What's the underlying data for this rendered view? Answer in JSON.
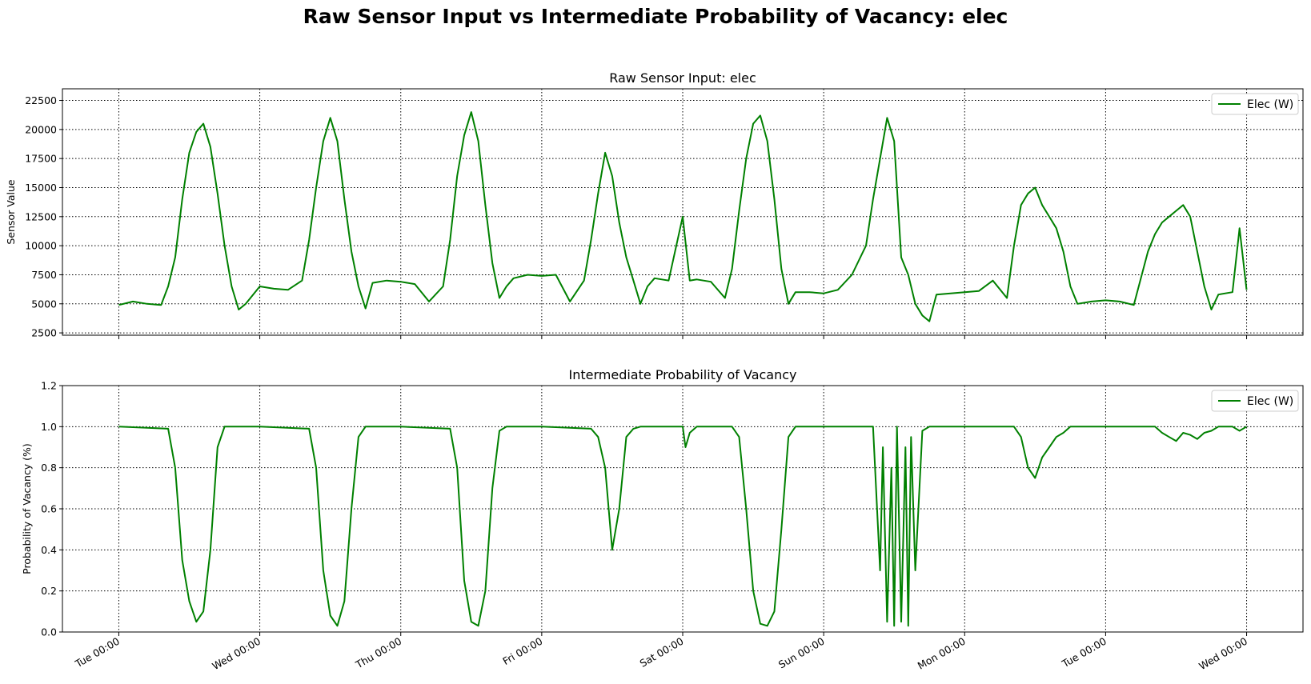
{
  "figure": {
    "title": "Raw Sensor Input vs Intermediate Probability of Vacancy: elec"
  },
  "colors": {
    "series": "#008000",
    "grid": "#000000",
    "axes": "#000000",
    "background": "#ffffff"
  },
  "chart_data": [
    {
      "type": "line",
      "title": "Raw Sensor Input: elec",
      "xlabel": "",
      "ylabel": "Sensor Value",
      "x_unit": "days since Tue 00:00",
      "xlim": [
        -0.4,
        8.4
      ],
      "ylim": [
        2300,
        23500
      ],
      "yticks": [
        2500,
        5000,
        7500,
        10000,
        12500,
        15000,
        17500,
        20000,
        22500
      ],
      "xticks": [
        0,
        1,
        2,
        3,
        4,
        5,
        6,
        7,
        8
      ],
      "xtick_labels": [
        "Tue 00:00",
        "Wed 00:00",
        "Thu 00:00",
        "Fri 00:00",
        "Sat 00:00",
        "Sun 00:00",
        "Mon 00:00",
        "Tue 00:00",
        "Wed 00:00"
      ],
      "grid": true,
      "legend_position": "top-right",
      "series": [
        {
          "name": "Elec (W)",
          "x": [
            0,
            0.1,
            0.2,
            0.3,
            0.35,
            0.4,
            0.45,
            0.5,
            0.55,
            0.6,
            0.65,
            0.7,
            0.75,
            0.8,
            0.85,
            0.9,
            1.0,
            1.1,
            1.2,
            1.3,
            1.35,
            1.4,
            1.45,
            1.5,
            1.55,
            1.6,
            1.65,
            1.7,
            1.75,
            1.8,
            1.9,
            2.0,
            2.1,
            2.2,
            2.3,
            2.35,
            2.4,
            2.45,
            2.5,
            2.55,
            2.6,
            2.65,
            2.7,
            2.75,
            2.8,
            2.9,
            3.0,
            3.1,
            3.2,
            3.3,
            3.35,
            3.4,
            3.45,
            3.5,
            3.55,
            3.6,
            3.65,
            3.7,
            3.75,
            3.8,
            3.9,
            4.0,
            4.05,
            4.1,
            4.2,
            4.3,
            4.35,
            4.4,
            4.45,
            4.5,
            4.55,
            4.6,
            4.65,
            4.7,
            4.75,
            4.8,
            4.9,
            5.0,
            5.1,
            5.2,
            5.3,
            5.35,
            5.4,
            5.45,
            5.5,
            5.55,
            5.6,
            5.65,
            5.7,
            5.75,
            5.8,
            5.9,
            6.0,
            6.1,
            6.2,
            6.3,
            6.35,
            6.4,
            6.45,
            6.5,
            6.55,
            6.6,
            6.65,
            6.7,
            6.75,
            6.8,
            6.9,
            7.0,
            7.1,
            7.2,
            7.3,
            7.35,
            7.4,
            7.45,
            7.5,
            7.55,
            7.6,
            7.65,
            7.7,
            7.75,
            7.8,
            7.9,
            7.95,
            8.0
          ],
          "y": [
            4900,
            5200,
            5000,
            4900,
            6500,
            9000,
            14000,
            18000,
            19800,
            20500,
            18500,
            14500,
            10000,
            6500,
            4500,
            5000,
            6500,
            6300,
            6200,
            7000,
            10500,
            15000,
            19000,
            21000,
            19000,
            14000,
            9500,
            6500,
            4600,
            6800,
            7000,
            6900,
            6700,
            5200,
            6500,
            10500,
            16000,
            19500,
            21500,
            19000,
            13500,
            8500,
            5500,
            6500,
            7200,
            7500,
            7400,
            7500,
            5200,
            7000,
            10500,
            14500,
            18000,
            16000,
            12000,
            9000,
            7000,
            5000,
            6500,
            7200,
            7000,
            12500,
            7000,
            7100,
            6900,
            5500,
            8000,
            13000,
            17500,
            20500,
            21200,
            19000,
            14000,
            8000,
            5000,
            6000,
            6000,
            5900,
            6200,
            7500,
            10000,
            14000,
            17500,
            21000,
            19000,
            9000,
            7500,
            5000,
            4000,
            3500,
            5800,
            5900,
            6000,
            6100,
            7000,
            5500,
            10000,
            13500,
            14500,
            15000,
            13500,
            12500,
            11500,
            9500,
            6500,
            5000,
            5200,
            5300,
            5200,
            4900,
            9500,
            11000,
            12000,
            12500,
            13000,
            13500,
            12500,
            9500,
            6500,
            4500,
            5800,
            6000,
            11500,
            6200
          ]
        }
      ]
    },
    {
      "type": "line",
      "title": "Intermediate Probability of Vacancy",
      "xlabel": "",
      "ylabel": "Probability of Vacancy (%)",
      "x_unit": "days since Tue 00:00",
      "xlim": [
        -0.4,
        8.4
      ],
      "ylim": [
        0.0,
        1.2
      ],
      "yticks": [
        0.0,
        0.2,
        0.4,
        0.6,
        0.8,
        1.0,
        1.2
      ],
      "xticks": [
        0,
        1,
        2,
        3,
        4,
        5,
        6,
        7,
        8
      ],
      "xtick_labels": [
        "Tue 00:00",
        "Wed 00:00",
        "Thu 00:00",
        "Fri 00:00",
        "Sat 00:00",
        "Sun 00:00",
        "Mon 00:00",
        "Tue 00:00",
        "Wed 00:00"
      ],
      "grid": true,
      "legend_position": "top-right",
      "series": [
        {
          "name": "Elec (W)",
          "x": [
            0,
            0.35,
            0.4,
            0.45,
            0.5,
            0.55,
            0.6,
            0.65,
            0.7,
            0.75,
            0.8,
            0.9,
            1.0,
            1.35,
            1.4,
            1.45,
            1.5,
            1.55,
            1.6,
            1.65,
            1.7,
            1.75,
            1.8,
            1.9,
            2.0,
            2.35,
            2.4,
            2.45,
            2.5,
            2.55,
            2.6,
            2.65,
            2.7,
            2.75,
            2.8,
            2.9,
            3.0,
            3.35,
            3.4,
            3.45,
            3.5,
            3.55,
            3.6,
            3.65,
            3.7,
            3.75,
            3.8,
            3.9,
            4.0,
            4.02,
            4.05,
            4.1,
            4.35,
            4.4,
            4.45,
            4.5,
            4.55,
            4.6,
            4.65,
            4.7,
            4.75,
            4.8,
            4.9,
            5.0,
            5.35,
            5.4,
            5.42,
            5.45,
            5.48,
            5.5,
            5.52,
            5.55,
            5.58,
            5.6,
            5.62,
            5.65,
            5.7,
            5.75,
            5.8,
            5.9,
            6.0,
            6.35,
            6.4,
            6.45,
            6.5,
            6.55,
            6.6,
            6.65,
            6.7,
            6.75,
            6.8,
            6.9,
            7.0,
            7.35,
            7.4,
            7.45,
            7.5,
            7.55,
            7.6,
            7.65,
            7.7,
            7.75,
            7.8,
            7.9,
            7.95,
            8.0
          ],
          "y": [
            1.0,
            0.99,
            0.8,
            0.35,
            0.15,
            0.05,
            0.1,
            0.4,
            0.9,
            1.0,
            1.0,
            1.0,
            1.0,
            0.99,
            0.8,
            0.3,
            0.08,
            0.03,
            0.15,
            0.6,
            0.95,
            1.0,
            1.0,
            1.0,
            1.0,
            0.99,
            0.8,
            0.25,
            0.05,
            0.03,
            0.2,
            0.7,
            0.98,
            1.0,
            1.0,
            1.0,
            1.0,
            0.99,
            0.95,
            0.8,
            0.4,
            0.6,
            0.95,
            0.99,
            1.0,
            1.0,
            1.0,
            1.0,
            1.0,
            0.9,
            0.97,
            1.0,
            1.0,
            0.95,
            0.6,
            0.2,
            0.04,
            0.03,
            0.1,
            0.5,
            0.95,
            1.0,
            1.0,
            1.0,
            1.0,
            0.3,
            0.9,
            0.05,
            0.8,
            0.03,
            1.0,
            0.05,
            0.9,
            0.03,
            0.95,
            0.3,
            0.98,
            1.0,
            1.0,
            1.0,
            1.0,
            1.0,
            0.95,
            0.8,
            0.75,
            0.85,
            0.9,
            0.95,
            0.97,
            1.0,
            1.0,
            1.0,
            1.0,
            1.0,
            0.97,
            0.95,
            0.93,
            0.97,
            0.96,
            0.94,
            0.97,
            0.98,
            1.0,
            1.0,
            0.98,
            1.0
          ]
        }
      ]
    }
  ]
}
